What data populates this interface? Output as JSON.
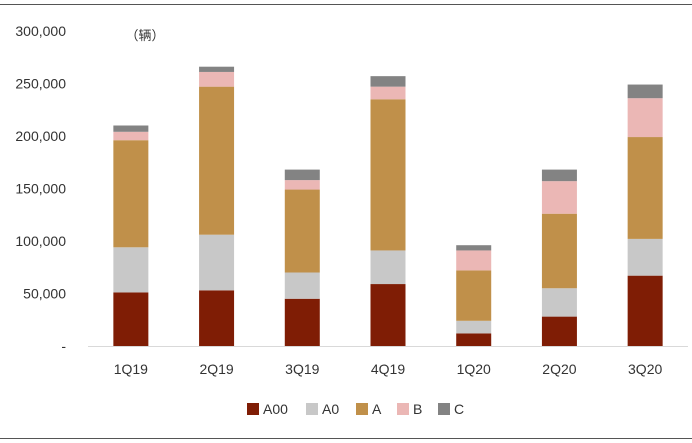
{
  "chart_data": {
    "type": "bar",
    "stacked": true,
    "unit_label": "（辆）",
    "categories": [
      "1Q19",
      "2Q19",
      "3Q19",
      "4Q19",
      "1Q20",
      "2Q20",
      "3Q20"
    ],
    "series": [
      {
        "name": "A00",
        "color": "#7f1d05",
        "values": [
          51000,
          53000,
          45000,
          59000,
          12000,
          28000,
          67000
        ]
      },
      {
        "name": "A0",
        "color": "#c8c8c8",
        "values": [
          43000,
          53000,
          25000,
          32000,
          12000,
          27000,
          35000
        ]
      },
      {
        "name": "A",
        "color": "#c0904a",
        "values": [
          102000,
          141000,
          79000,
          144000,
          48000,
          71000,
          97000
        ]
      },
      {
        "name": "B",
        "color": "#ebb7b5",
        "values": [
          8000,
          14000,
          9000,
          12000,
          19000,
          31000,
          37000
        ]
      },
      {
        "name": "C",
        "color": "#838383",
        "values": [
          6000,
          5000,
          10000,
          10000,
          5000,
          11000,
          13000
        ]
      }
    ],
    "ylim": [
      0,
      300000
    ],
    "yticks": [
      0,
      50000,
      100000,
      150000,
      200000,
      250000,
      300000
    ],
    "ytick_labels": [
      "-",
      "50,000",
      "100,000",
      "150,000",
      "200,000",
      "250,000",
      "300,000"
    ],
    "legend_position": "bottom-center",
    "grid": false
  }
}
